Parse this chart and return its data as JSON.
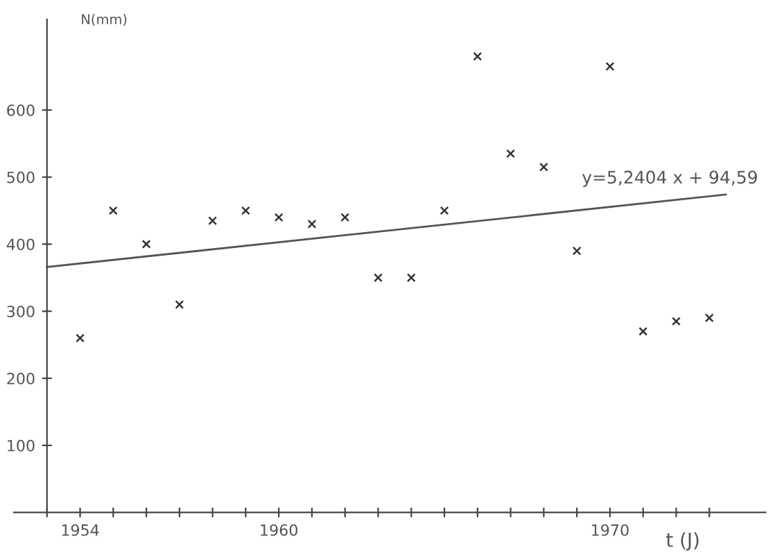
{
  "chart_data": {
    "type": "scatter",
    "xlabel": "t (J)",
    "ylabel": "N(mm)",
    "x": [
      1954,
      1955,
      1956,
      1957,
      1958,
      1959,
      1960,
      1961,
      1962,
      1963,
      1964,
      1965,
      1966,
      1967,
      1968,
      1969,
      1970,
      1971,
      1972,
      1973
    ],
    "series": [
      {
        "color": "#333333",
        "marker": "cross",
        "values": [
          260,
          450,
          400,
          310,
          435,
          450,
          440,
          430,
          440,
          350,
          350,
          450,
          680,
          535,
          515,
          390,
          665,
          270,
          285,
          290
        ]
      },
      {
        "type": "line",
        "color": "#555555",
        "marker": "none",
        "line_style": "solid",
        "x": [
          1953,
          1973.5
        ],
        "values": [
          366,
          474
        ]
      }
    ],
    "annotations": [
      "y=5,2404 x + 94,59"
    ],
    "xlim": [
      1952,
      1974.7
    ],
    "ylim": [
      0,
      735
    ],
    "xticks": [
      {
        "value": 1953,
        "label": null
      },
      1954,
      {
        "value": 1955,
        "label": null
      },
      {
        "value": 1956,
        "label": null
      },
      {
        "value": 1957,
        "label": null
      },
      {
        "value": 1958,
        "label": null
      },
      {
        "value": 1959,
        "label": null
      },
      1960,
      {
        "value": 1961,
        "label": null
      },
      {
        "value": 1962,
        "label": null
      },
      {
        "value": 1963,
        "label": null
      },
      {
        "value": 1964,
        "label": null
      },
      {
        "value": 1965,
        "label": null
      },
      {
        "value": 1966,
        "label": null
      },
      {
        "value": 1967,
        "label": null
      },
      {
        "value": 1968,
        "label": null
      },
      {
        "value": 1969,
        "label": null
      },
      1970,
      {
        "value": 1971,
        "label": null
      },
      {
        "value": 1972,
        "label": null
      },
      {
        "value": 1973,
        "label": null
      }
    ],
    "yticks": [
      100,
      200,
      300,
      400,
      500,
      600
    ],
    "grid": false,
    "legend": false
  }
}
